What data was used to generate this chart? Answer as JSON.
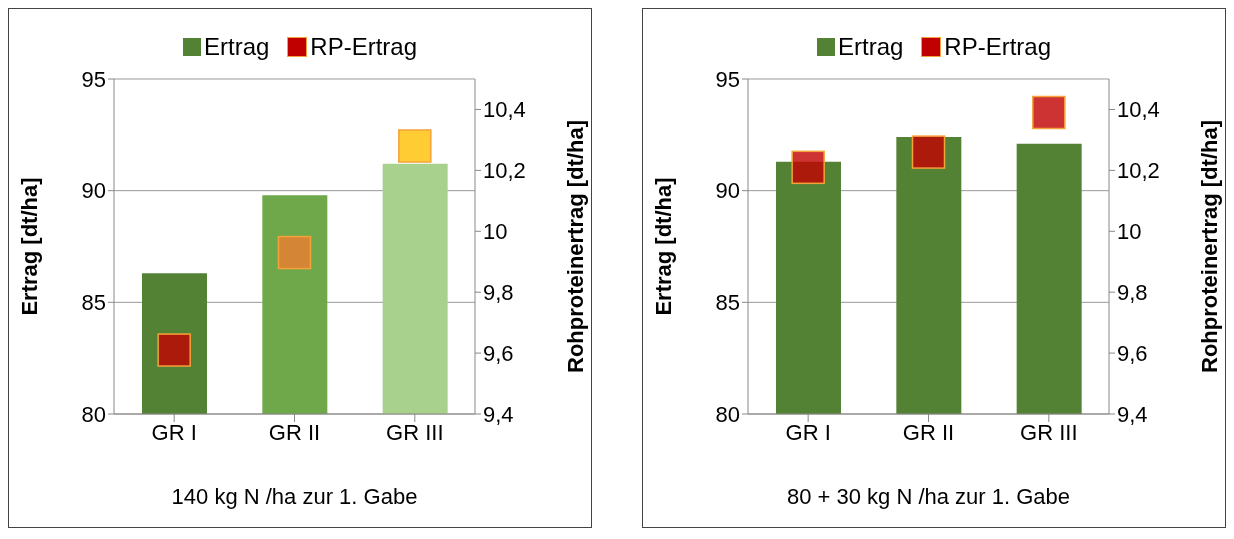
{
  "chart_data": [
    {
      "type": "bar",
      "categories": [
        "GR I",
        "GR II",
        "GR III"
      ],
      "xlabel": "140 kg N /ha zur 1. Gabe",
      "ylabel": "Ertrag [dt/ha]",
      "y2label": "Rohproteinertrag [dt/ha]",
      "ylim": [
        80,
        95
      ],
      "yticks": [
        80,
        85,
        90,
        95
      ],
      "y2lim": [
        9.4,
        10.5
      ],
      "y2ticks": [
        {
          "value": 9.4,
          "label": "9,4"
        },
        {
          "value": 9.6,
          "label": "9,6"
        },
        {
          "value": 9.8,
          "label": "9,8"
        },
        10,
        {
          "value": 10.2,
          "label": "10,2"
        },
        {
          "value": 10.4,
          "label": "10,4"
        }
      ],
      "grid": "y",
      "legend": "top",
      "series": [
        {
          "name": "Ertrag",
          "color": "#548235",
          "colors": [
            "#548235",
            "#6fa84a",
            "#a9d18e"
          ],
          "values": [
            86.3,
            89.8,
            91.2
          ]
        },
        {
          "name": "RP-Ertrag",
          "type": "scatter",
          "axis": "y2",
          "marker": "square",
          "color": "#c00000",
          "colors": [
            "#c00000",
            "#ed7d31",
            "#ffc000"
          ],
          "values": [
            9.61,
            9.93,
            10.28
          ]
        }
      ]
    },
    {
      "type": "bar",
      "categories": [
        "GR I",
        "GR II",
        "GR III"
      ],
      "xlabel": "80 + 30 kg N /ha zur 1. Gabe",
      "ylabel": "Ertrag [dt/ha]",
      "y2label": "Rohproteinertrag [dt/ha]",
      "ylim": [
        80,
        95
      ],
      "yticks": [
        80,
        85,
        90,
        95
      ],
      "y2lim": [
        9.4,
        10.5
      ],
      "y2ticks": [
        {
          "value": 9.4,
          "label": "9,4"
        },
        {
          "value": 9.6,
          "label": "9,6"
        },
        {
          "value": 9.8,
          "label": "9,8"
        },
        10,
        {
          "value": 10.2,
          "label": "10,2"
        },
        {
          "value": 10.4,
          "label": "10,4"
        }
      ],
      "grid": "y",
      "legend": "top",
      "series": [
        {
          "name": "Ertrag",
          "color": "#548235",
          "colors": [
            "#548235",
            "#548235",
            "#548235"
          ],
          "values": [
            91.3,
            92.4,
            92.1
          ]
        },
        {
          "name": "RP-Ertrag",
          "type": "scatter",
          "axis": "y2",
          "marker": "square",
          "color": "#c00000",
          "colors": [
            "#c00000",
            "#c00000",
            "#c00000"
          ],
          "values": [
            10.21,
            10.26,
            10.39
          ]
        }
      ]
    }
  ]
}
